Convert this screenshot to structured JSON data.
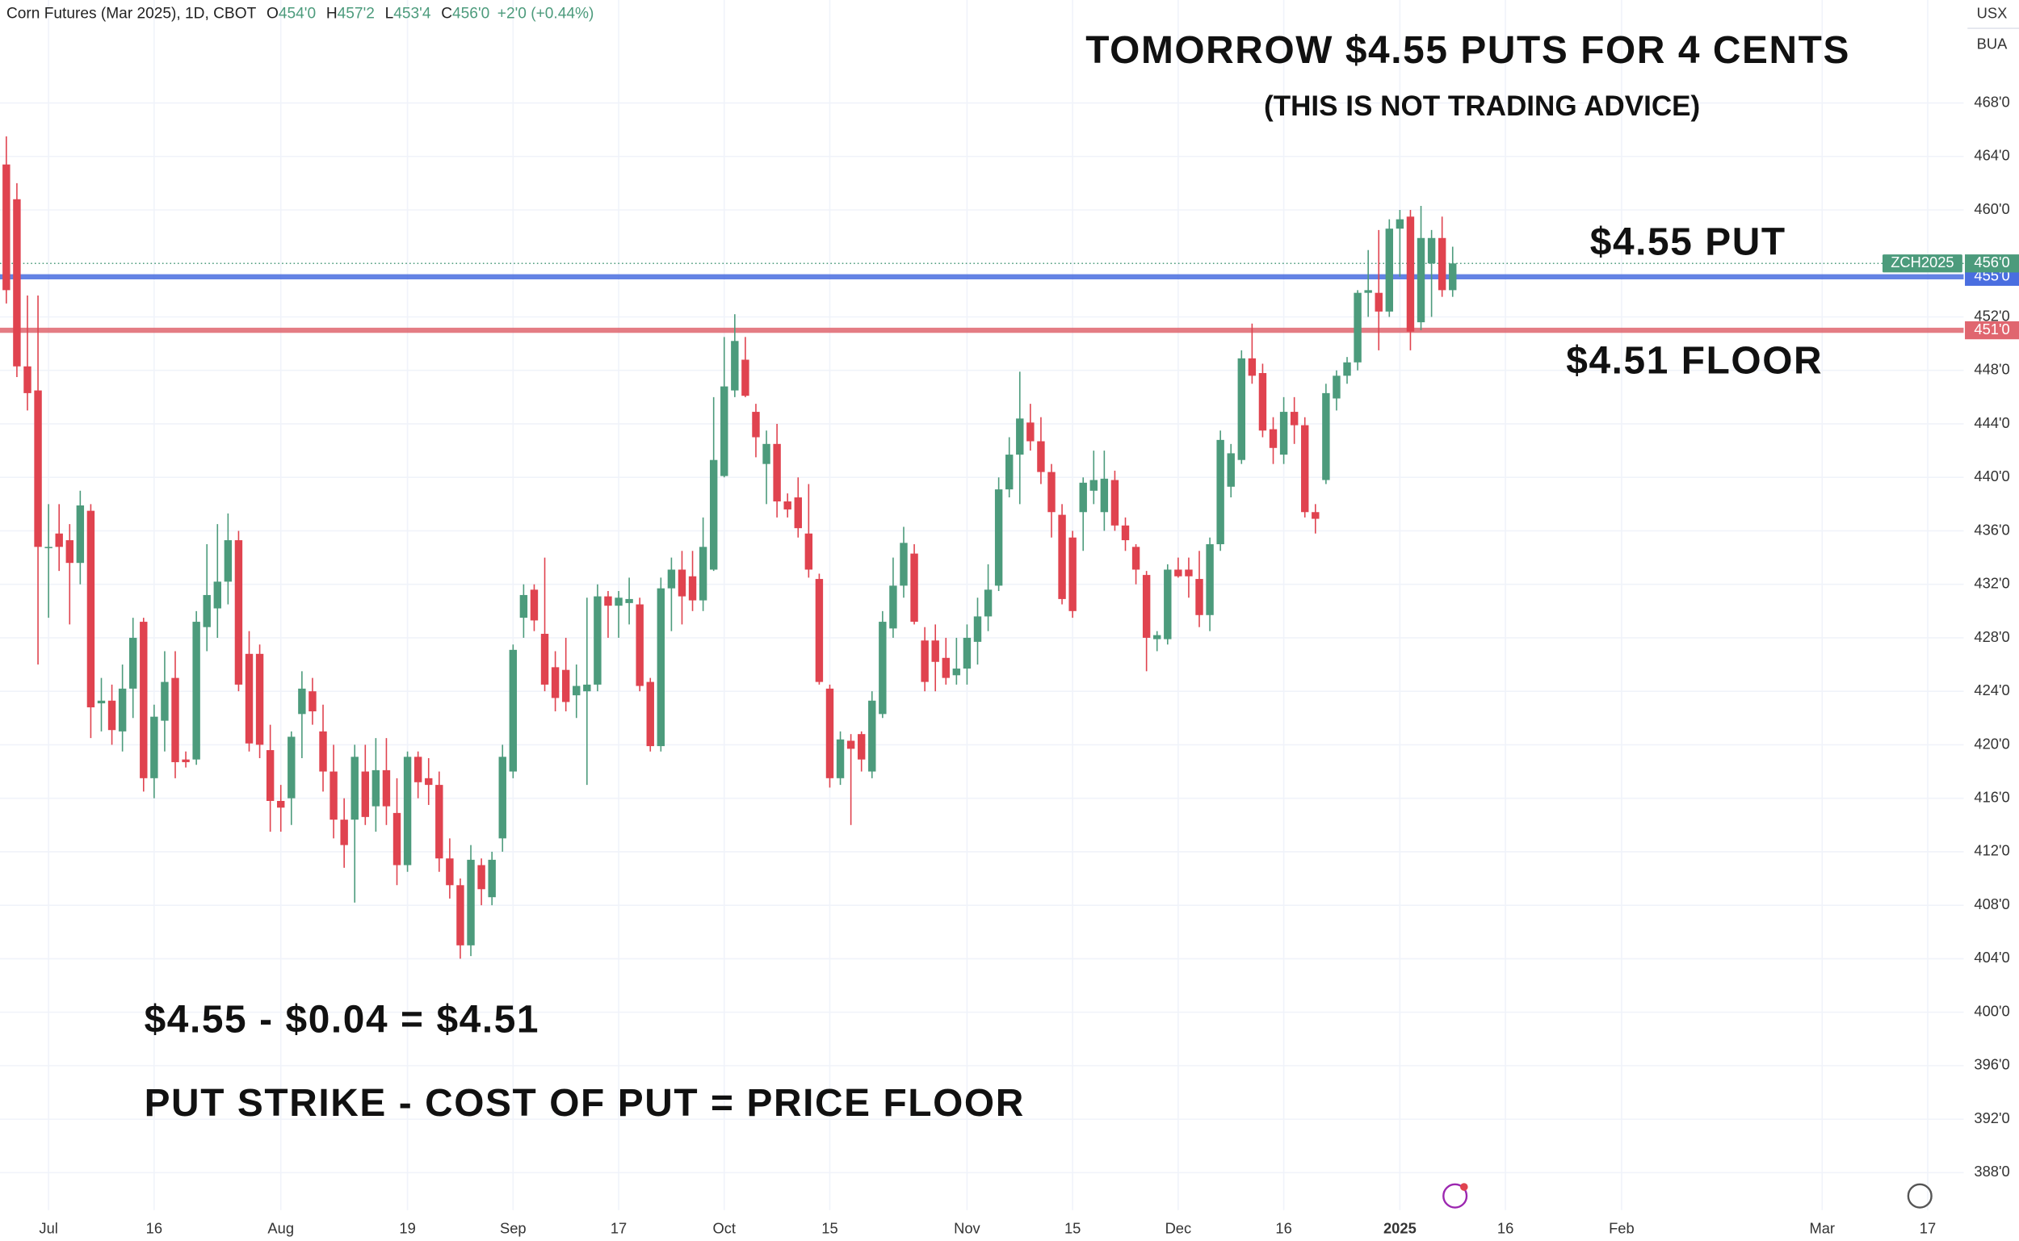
{
  "chart_data": {
    "type": "candlestick",
    "header": {
      "symbol": "Corn Futures (Mar 2025), 1D, CBOT",
      "fields": [
        {
          "label": "O",
          "value": "454'0"
        },
        {
          "label": "H",
          "value": "457'2"
        },
        {
          "label": "L",
          "value": "453'4"
        },
        {
          "label": "C",
          "value": "456'0"
        }
      ],
      "change": "+2'0 (+0.44%)"
    },
    "currency": "USX",
    "unit": "BUA",
    "annotations": [
      "TOMORROW $4.55 PUTS FOR 4 CENTS",
      "(THIS IS NOT TRADING ADVICE)",
      "$4.55 PUT",
      "$4.51 FLOOR",
      "$4.55 - $0.04 = $4.51",
      "PUT STRIKE - COST OF PUT = PRICE FLOOR"
    ],
    "up_color": "#4c9b7c",
    "down_color": "#e0434f",
    "grid": true,
    "ylim": [
      385.2,
      475.7
    ],
    "yticks": [
      {
        "value": 388,
        "label": "388'0"
      },
      {
        "value": 392,
        "label": "392'0"
      },
      {
        "value": 396,
        "label": "396'0"
      },
      {
        "value": 400,
        "label": "400'0"
      },
      {
        "value": 404,
        "label": "404'0"
      },
      {
        "value": 408,
        "label": "408'0"
      },
      {
        "value": 412,
        "label": "412'0"
      },
      {
        "value": 416,
        "label": "416'0"
      },
      {
        "value": 420,
        "label": "420'0"
      },
      {
        "value": 424,
        "label": "424'0"
      },
      {
        "value": 428,
        "label": "428'0"
      },
      {
        "value": 432,
        "label": "432'0"
      },
      {
        "value": 436,
        "label": "436'0"
      },
      {
        "value": 440,
        "label": "440'0"
      },
      {
        "value": 444,
        "label": "444'0"
      },
      {
        "value": 448,
        "label": "448'0"
      },
      {
        "value": 452,
        "label": "452'0"
      },
      {
        "value": 460,
        "label": "460'0"
      },
      {
        "value": 464,
        "label": "464'0"
      },
      {
        "value": 468,
        "label": "468'0"
      }
    ],
    "xlim": [
      -0.6,
      185.4
    ],
    "xticks": [
      {
        "value": 4,
        "label": "Jul"
      },
      {
        "value": 14,
        "label": "16"
      },
      {
        "value": 26,
        "label": "Aug"
      },
      {
        "value": 38,
        "label": "19"
      },
      {
        "value": 48,
        "label": "Sep"
      },
      {
        "value": 58,
        "label": "17"
      },
      {
        "value": 68,
        "label": "Oct"
      },
      {
        "value": 78,
        "label": "15"
      },
      {
        "value": 91,
        "label": "Nov"
      },
      {
        "value": 101,
        "label": "15"
      },
      {
        "value": 111,
        "label": "Dec"
      },
      {
        "value": 121,
        "label": "16"
      },
      {
        "value": 132,
        "label": "2025"
      },
      {
        "value": 142,
        "label": "16"
      },
      {
        "value": 153,
        "label": "Feb"
      },
      {
        "value": 172,
        "label": "Mar"
      },
      {
        "value": 182,
        "label": "17"
      }
    ],
    "hlines": [
      {
        "value": 455,
        "label": "455'0",
        "color": "#4a6ee0"
      },
      {
        "value": 451,
        "label": "451'0",
        "color": "#e0666f"
      }
    ],
    "last_price": {
      "value": 456,
      "label": "456'0",
      "name": "ZCH2025",
      "color": "#4c9b7c"
    },
    "ohlc": [
      [
        463.4,
        465.5,
        453,
        454
      ],
      [
        460.8,
        462,
        447.5,
        448.3
      ],
      [
        448.3,
        453.6,
        445,
        446.3
      ],
      [
        446.5,
        453.6,
        426,
        434.8
      ],
      [
        434.8,
        438,
        429.5,
        434.8
      ],
      [
        435.8,
        438,
        433,
        434.8
      ],
      [
        435.3,
        436.5,
        429,
        433.6
      ],
      [
        433.6,
        439,
        432,
        437.9
      ],
      [
        437.5,
        438,
        420.5,
        422.8
      ],
      [
        423.1,
        425,
        421,
        423.3
      ],
      [
        423.3,
        424.5,
        420,
        421.1
      ],
      [
        421,
        426,
        419.5,
        424.2
      ],
      [
        424.2,
        429.5,
        422,
        428
      ],
      [
        429.2,
        429.5,
        416.5,
        417.5
      ],
      [
        417.5,
        423,
        416,
        422.1
      ],
      [
        421.8,
        427,
        419.5,
        424.7
      ],
      [
        425,
        427,
        417.5,
        418.7
      ],
      [
        418.9,
        419.5,
        418.3,
        418.7
      ],
      [
        418.9,
        430,
        418.5,
        429.2
      ],
      [
        428.8,
        435,
        427,
        431.2
      ],
      [
        430.2,
        436.5,
        428,
        432.2
      ],
      [
        432.2,
        437.3,
        430.5,
        435.3
      ],
      [
        435.3,
        436,
        424,
        424.5
      ],
      [
        426.8,
        428.5,
        419.5,
        420.1
      ],
      [
        426.8,
        427.5,
        419,
        420
      ],
      [
        419.6,
        421.5,
        413.5,
        415.8
      ],
      [
        415.8,
        417,
        413.5,
        415.3
      ],
      [
        416,
        421,
        414,
        420.6
      ],
      [
        422.3,
        425.5,
        419,
        424.2
      ],
      [
        424,
        425,
        421.5,
        422.5
      ],
      [
        421,
        423,
        416.5,
        418
      ],
      [
        418,
        420,
        413,
        414.4
      ],
      [
        414.4,
        416,
        410.8,
        412.5
      ],
      [
        414.4,
        420,
        408.2,
        419.1
      ],
      [
        418,
        420,
        414,
        414.6
      ],
      [
        415.4,
        420.5,
        413.5,
        418.1
      ],
      [
        418.1,
        420.5,
        414,
        415.4
      ],
      [
        414.9,
        417.5,
        409.5,
        411
      ],
      [
        411,
        419.5,
        410.5,
        419.1
      ],
      [
        419.1,
        419.5,
        416,
        417.2
      ],
      [
        417.5,
        419,
        415.5,
        417
      ],
      [
        417,
        418,
        410.5,
        411.5
      ],
      [
        411.5,
        413,
        408.5,
        409.5
      ],
      [
        409.5,
        410,
        404,
        405
      ],
      [
        405,
        412.5,
        404.2,
        411.4
      ],
      [
        411,
        411.5,
        408,
        409.2
      ],
      [
        408.6,
        412,
        408,
        411.4
      ],
      [
        413,
        420,
        412,
        419.1
      ],
      [
        418,
        427.5,
        417.5,
        427.1
      ],
      [
        429.5,
        432,
        428,
        431.2
      ],
      [
        431.6,
        432,
        428.5,
        429.3
      ],
      [
        428.3,
        434,
        424,
        424.5
      ],
      [
        425.8,
        427,
        422.5,
        423.5
      ],
      [
        425.6,
        428,
        422.5,
        423.2
      ],
      [
        423.7,
        426,
        422,
        424.4
      ],
      [
        424,
        431,
        417,
        424.5
      ],
      [
        424.5,
        432,
        424,
        431.1
      ],
      [
        431.1,
        431.5,
        428,
        430.4
      ],
      [
        430.4,
        431.5,
        428,
        431
      ],
      [
        430.6,
        432.5,
        429,
        430.9
      ],
      [
        430.5,
        431,
        424,
        424.4
      ],
      [
        424.7,
        425,
        419.5,
        419.9
      ],
      [
        419.9,
        432.5,
        419.5,
        431.7
      ],
      [
        431.7,
        434,
        428.5,
        433.1
      ],
      [
        433.1,
        434.5,
        429,
        431.1
      ],
      [
        432.6,
        434.5,
        430,
        430.8
      ],
      [
        430.8,
        437,
        430,
        434.8
      ],
      [
        433.1,
        446,
        433,
        441.3
      ],
      [
        440.1,
        450.5,
        440,
        446.8
      ],
      [
        446.5,
        452.2,
        446,
        450.2
      ],
      [
        448.8,
        450.5,
        446,
        446.1
      ],
      [
        444.9,
        445.5,
        441.5,
        443
      ],
      [
        441,
        443.5,
        438,
        442.5
      ],
      [
        442.5,
        444,
        437,
        438.2
      ],
      [
        438.2,
        438.8,
        437,
        437.6
      ],
      [
        438.5,
        440,
        435.5,
        436.2
      ],
      [
        435.8,
        439.5,
        432.5,
        433.1
      ],
      [
        432.4,
        432.8,
        424.5,
        424.7
      ],
      [
        424.2,
        424.5,
        416.8,
        417.5
      ],
      [
        417.5,
        421,
        417,
        420.4
      ],
      [
        420.3,
        420.8,
        414,
        419.7
      ],
      [
        420.8,
        421,
        418,
        418.9
      ],
      [
        418,
        424,
        417.5,
        423.3
      ],
      [
        422.3,
        430,
        422,
        429.2
      ],
      [
        428.7,
        434,
        428,
        431.9
      ],
      [
        431.9,
        436.3,
        431,
        435.1
      ],
      [
        434.3,
        435,
        429,
        429.2
      ],
      [
        427.8,
        428.8,
        424,
        424.7
      ],
      [
        427.8,
        429,
        424,
        426.2
      ],
      [
        426.5,
        428,
        424.5,
        425
      ],
      [
        425.2,
        428,
        424.5,
        425.7
      ],
      [
        425.7,
        429,
        424.5,
        428
      ],
      [
        427.7,
        431,
        426,
        429.6
      ],
      [
        429.6,
        433.5,
        428.5,
        431.6
      ],
      [
        431.9,
        440,
        431.5,
        439.1
      ],
      [
        439.1,
        443,
        438.5,
        441.7
      ],
      [
        441.7,
        447.9,
        438,
        444.4
      ],
      [
        444.1,
        445.5,
        442,
        442.7
      ],
      [
        442.7,
        444.5,
        439.5,
        440.4
      ],
      [
        440.4,
        441,
        435.5,
        437.4
      ],
      [
        437.2,
        438,
        430.5,
        430.9
      ],
      [
        435.5,
        436,
        429.5,
        430
      ],
      [
        437.4,
        440,
        434.5,
        439.6
      ],
      [
        439,
        442,
        438,
        439.8
      ],
      [
        437.4,
        442,
        436,
        439.9
      ],
      [
        439.8,
        440.5,
        436,
        436.4
      ],
      [
        436.4,
        437,
        434.5,
        435.3
      ],
      [
        434.8,
        435,
        432,
        433.1
      ],
      [
        432.7,
        433,
        425.5,
        428
      ],
      [
        427.9,
        428.5,
        427,
        428.2
      ],
      [
        427.9,
        433.5,
        427.5,
        433.1
      ],
      [
        433.1,
        434,
        432.5,
        432.6
      ],
      [
        433.1,
        434,
        431,
        432.6
      ],
      [
        432.4,
        434.5,
        428.8,
        429.7
      ],
      [
        429.7,
        435.5,
        428.5,
        435
      ],
      [
        435,
        443.5,
        434.5,
        442.8
      ],
      [
        439.3,
        442.5,
        438.5,
        441.8
      ],
      [
        441.3,
        449.5,
        441,
        448.9
      ],
      [
        448.9,
        451.5,
        447,
        447.6
      ],
      [
        447.8,
        448.5,
        443,
        443.5
      ],
      [
        443.6,
        444.5,
        441,
        442.2
      ],
      [
        441.7,
        446,
        441,
        444.9
      ],
      [
        444.9,
        446,
        442.5,
        443.9
      ],
      [
        443.9,
        444.5,
        437,
        437.4
      ],
      [
        437.4,
        438,
        435.8,
        436.9
      ],
      [
        439.8,
        447,
        439.5,
        446.3
      ],
      [
        445.9,
        448,
        445,
        447.6
      ],
      [
        447.6,
        449,
        447,
        448.6
      ],
      [
        448.6,
        454,
        448,
        453.8
      ],
      [
        453.8,
        457,
        452,
        454
      ],
      [
        453.8,
        458.5,
        449.5,
        452.4
      ],
      [
        452.4,
        459.3,
        452,
        458.6
      ],
      [
        458.6,
        460,
        455,
        459.3
      ],
      [
        459.5,
        460,
        449.5,
        450.9
      ],
      [
        451.6,
        460.3,
        451,
        457.9
      ],
      [
        456,
        458.5,
        452,
        457.9
      ],
      [
        457.9,
        459.5,
        453.5,
        454
      ],
      [
        454,
        457.25,
        453.5,
        456
      ]
    ]
  }
}
